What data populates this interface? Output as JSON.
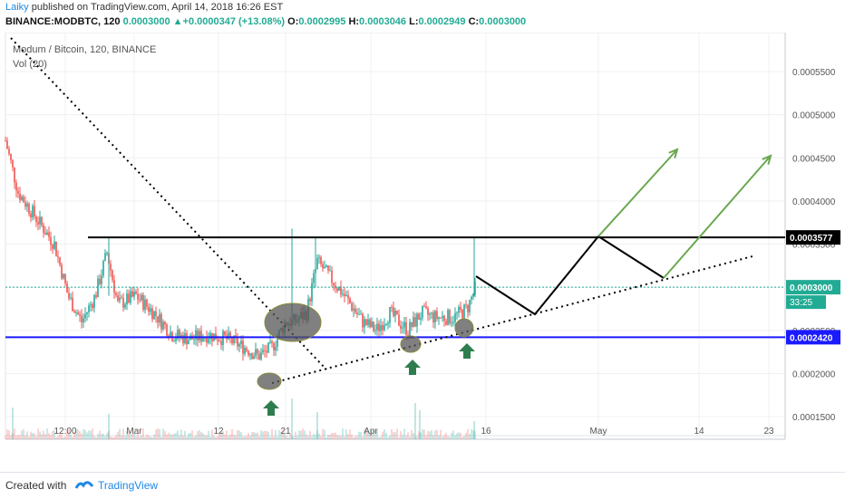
{
  "header": {
    "author": "Laiky",
    "published": " published on TradingView.com, April 14, 2018 16:26 EST",
    "symbol": "BINANCE:MODBTC, 120",
    "last": "0.0003000",
    "change": "+0.0000347 (+13.08%)",
    "o_label": "O:",
    "o": "0.0002995",
    "h_label": "H:",
    "h": "0.0003046",
    "l_label": "L:",
    "l": "0.0002949",
    "c_label": "C:",
    "c": "0.0003000"
  },
  "footer": {
    "created": "Created with",
    "brand": "TradingView"
  },
  "chart_data": {
    "type": "candlestick",
    "legend_title": "Modum / Bitcoin, 120, BINANCE",
    "volume_label": "Vol (20)",
    "y_ticks": [
      0.00015,
      0.0002,
      0.00025,
      0.0003,
      0.00035,
      0.0004,
      0.00045,
      0.0005,
      0.00055
    ],
    "y_tick_labels": [
      "0.0001500",
      "0.0002000",
      "0.0002500",
      "0.0003000",
      "0.0003500",
      "0.0004000",
      "0.0004500",
      "0.0005000",
      "0.0005500"
    ],
    "x_ticks": [
      "12:00",
      "Mar",
      "12",
      "21",
      "Apr",
      "16",
      "May",
      "14",
      "23"
    ],
    "price_labels": [
      {
        "value": 0.0003577,
        "text": "0.0003577",
        "color": "#000000",
        "text_color": "#ffffff"
      },
      {
        "value": 0.0003,
        "text": "0.0003000",
        "color": "#22ab94",
        "text_color": "#ffffff"
      },
      {
        "value": 0.000242,
        "text": "0.0002420",
        "color": "#1a1aff",
        "text_color": "#ffffff"
      }
    ],
    "countdown": "33:25",
    "resistance": 0.0003577,
    "support": 0.000242,
    "colors": {
      "up": "#26a69a",
      "down": "#ef5350",
      "projection": "#000000",
      "target": "#6aa84f",
      "arrow": "#2e7d4f",
      "ellipse": "#555555"
    }
  }
}
